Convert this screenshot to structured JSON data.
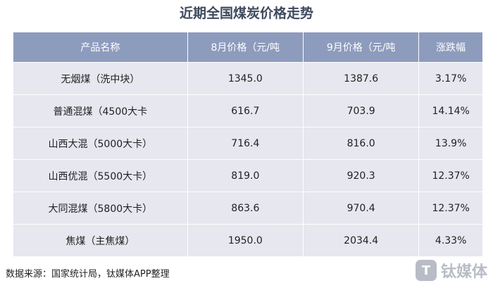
{
  "header": {
    "title": "近期全国煤炭价格走势"
  },
  "table": {
    "columns": [
      "产品名称",
      "8月价格（元/吨",
      "9月价格（元/吨",
      "涨跌幅"
    ],
    "rows": [
      [
        "无烟煤（洗中块）",
        "1345.0",
        "1387.6",
        "3.17%"
      ],
      [
        "普通混煤（4500大卡",
        "616.7",
        "703.9",
        "14.14%"
      ],
      [
        "山西大混（5000大卡）",
        "716.4",
        "816.0",
        "13.9%"
      ],
      [
        "山西优混（5500大卡）",
        "819.0",
        "920.3",
        "12.37%"
      ],
      [
        "大同混煤（5800大卡）",
        "863.6",
        "970.4",
        "12.37%"
      ],
      [
        "焦煤（主焦煤）",
        "1950.0",
        "2034.4",
        "4.33%"
      ]
    ]
  },
  "footer": {
    "source": "数据来源：国家统计局，钛媒体APP整理",
    "watermark": "钛媒体"
  }
}
